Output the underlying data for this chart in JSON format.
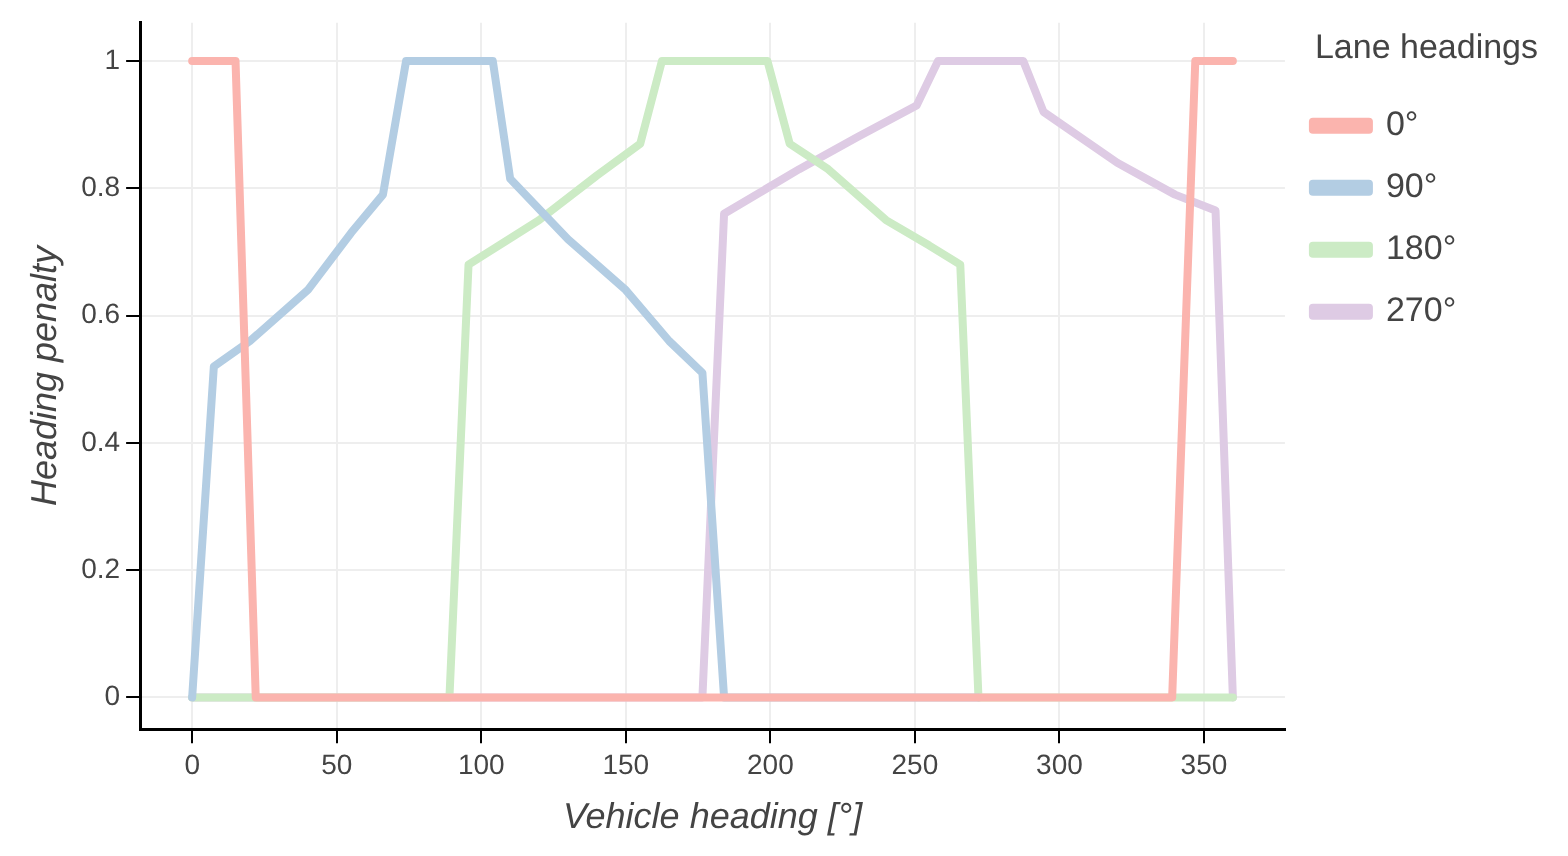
{
  "chart_data": {
    "type": "line",
    "xlabel": "Vehicle heading [°]",
    "ylabel": "Heading penalty",
    "legend_title": "Lane headings",
    "legend": "right",
    "grid": true,
    "marker": "none",
    "line_style": "solid",
    "xlim": [
      -18,
      378
    ],
    "xticks": [
      0,
      50,
      100,
      150,
      200,
      250,
      300,
      350
    ],
    "ylim": [
      -0.05,
      1.06
    ],
    "yticks": [
      0,
      0.2,
      0.4,
      0.6,
      0.8,
      1
    ],
    "series": [
      {
        "name": "0°",
        "color": "#fbb4ae",
        "x": [
          0,
          15,
          22,
          339,
          347,
          360
        ],
        "values": [
          1,
          1,
          0,
          0,
          1,
          1
        ]
      },
      {
        "name": "90°",
        "color": "#b3cde3",
        "x": [
          0,
          7.5,
          20,
          40,
          55,
          66,
          74,
          104,
          110,
          130,
          150,
          165,
          176.5,
          184,
          272
        ],
        "values": [
          0,
          0.52,
          0.56,
          0.64,
          0.73,
          0.79,
          1,
          1,
          0.815,
          0.72,
          0.64,
          0.56,
          0.51,
          0,
          0
        ]
      },
      {
        "name": "180°",
        "color": "#ccebc5",
        "x": [
          0,
          89,
          95.6,
          120,
          140,
          155,
          162.5,
          199,
          206.7,
          220,
          240,
          255,
          265.7,
          272,
          360
        ],
        "values": [
          0,
          0,
          0.68,
          0.75,
          0.82,
          0.87,
          1,
          1,
          0.87,
          0.83,
          0.75,
          0.71,
          0.68,
          0,
          0
        ]
      },
      {
        "name": "270°",
        "color": "#decbe4",
        "x": [
          0,
          176.5,
          184,
          210,
          230,
          250.6,
          258,
          287.5,
          294.5,
          320,
          340,
          354,
          360
        ],
        "values": [
          0,
          0,
          0.76,
          0.83,
          0.88,
          0.93,
          1,
          1,
          0.92,
          0.84,
          0.79,
          0.765,
          0
        ]
      }
    ]
  }
}
